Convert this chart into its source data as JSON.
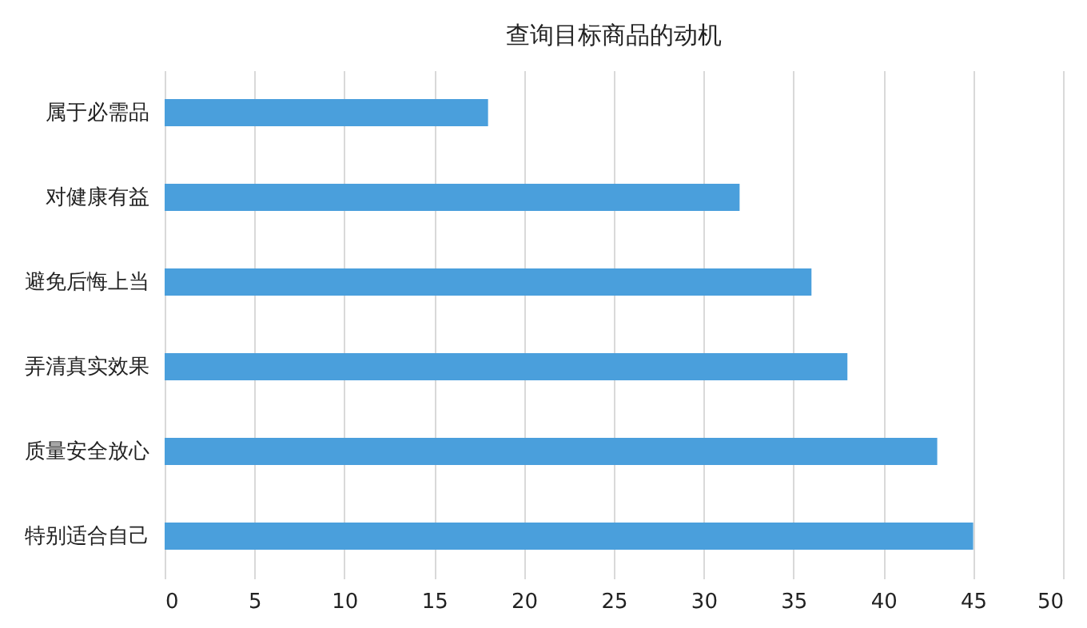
{
  "chart_data": {
    "type": "bar",
    "orientation": "horizontal",
    "title": "查询目标商品的动机",
    "categories": [
      "属于必需品",
      "对健康有益",
      "避免后悔上当",
      "弄清真实效果",
      "质量安全放心",
      "特别适合自己"
    ],
    "values": [
      18,
      32,
      36,
      38,
      43,
      45
    ],
    "color": "#4a9fdc",
    "xlim": [
      0,
      50
    ],
    "xticks": [
      0,
      5,
      10,
      15,
      20,
      25,
      30,
      35,
      40,
      45,
      50
    ],
    "grid": "x"
  }
}
